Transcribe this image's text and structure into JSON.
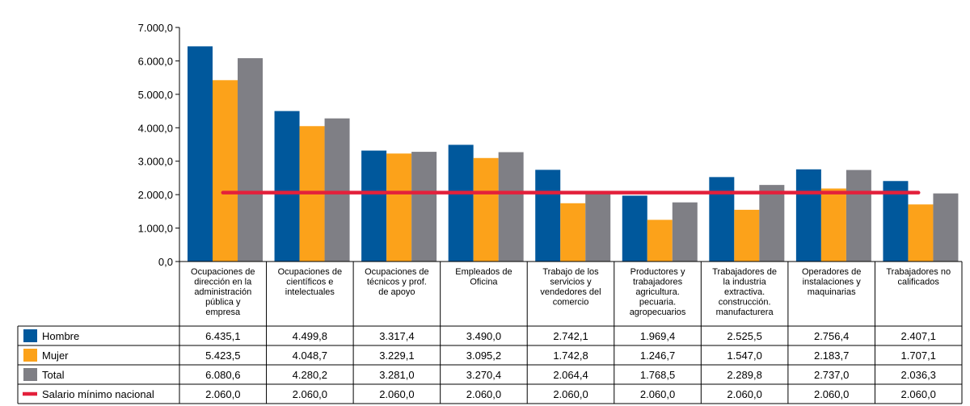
{
  "chart_data": {
    "type": "bar",
    "categories": [
      [
        "Ocupaciones de",
        "dirección en la",
        "administración",
        "pública y",
        "empresa"
      ],
      [
        "Ocupaciones de",
        "científicos e",
        "intelectuales"
      ],
      [
        "Ocupaciones de",
        "técnicos y prof.",
        "de apoyo"
      ],
      [
        "Empleados de",
        "Oficina"
      ],
      [
        "Trabajo de los",
        "servicios y",
        "vendedores del",
        "comercio"
      ],
      [
        "Productores y",
        "trabajadores",
        "agricultura.",
        "pecuaria.",
        "agropecuarios"
      ],
      [
        "Trabajadores de",
        "la industria",
        "extractiva.",
        "construcción.",
        "manufacturera"
      ],
      [
        "Operadores de",
        "instalaciones y",
        "maquinarias"
      ],
      [
        "Trabajadores no",
        "calificados"
      ]
    ],
    "series": [
      {
        "name": "Hombre",
        "color": "#00589c",
        "values": [
          6435.1,
          4499.8,
          3317.4,
          3490.0,
          2742.1,
          1969.4,
          2525.5,
          2756.4,
          2407.1
        ],
        "labels": [
          "6.435,1",
          "4.499,8",
          "3.317,4",
          "3.490,0",
          "2.742,1",
          "1.969,4",
          "2.525,5",
          "2.756,4",
          "2.407,1"
        ]
      },
      {
        "name": "Mujer",
        "color": "#fca21a",
        "values": [
          5423.5,
          4048.7,
          3229.1,
          3095.2,
          1742.8,
          1246.7,
          1547.0,
          2183.7,
          1707.1
        ],
        "labels": [
          "5.423,5",
          "4.048,7",
          "3.229,1",
          "3.095,2",
          "1.742,8",
          "1.246,7",
          "1.547,0",
          "2.183,7",
          "1.707,1"
        ]
      },
      {
        "name": "Total",
        "color": "#7f7f85",
        "values": [
          6080.6,
          4280.2,
          3281.0,
          3270.4,
          2064.4,
          1768.5,
          2289.8,
          2737.0,
          2036.3
        ],
        "labels": [
          "6.080,6",
          "4.280,2",
          "3.281,0",
          "3.270,4",
          "2.064,4",
          "1.768,5",
          "2.289,8",
          "2.737,0",
          "2.036,3"
        ]
      }
    ],
    "line_series": {
      "name": "Salario mínimo nacional",
      "color": "#e3203b",
      "values": [
        2060.0,
        2060.0,
        2060.0,
        2060.0,
        2060.0,
        2060.0,
        2060.0,
        2060.0,
        2060.0
      ],
      "labels": [
        "2.060,0",
        "2.060,0",
        "2.060,0",
        "2.060,0",
        "2.060,0",
        "2.060,0",
        "2.060,0",
        "2.060,0",
        "2.060,0"
      ]
    },
    "ylim": [
      0,
      7000
    ],
    "yticks": [
      0,
      1000,
      2000,
      3000,
      4000,
      5000,
      6000,
      7000
    ],
    "ytick_labels": [
      "0,0",
      "1.000,0",
      "2.000,0",
      "3.000,0",
      "4.000,0",
      "5.000,0",
      "6.000,0",
      "7.000,0"
    ],
    "grid": false,
    "legend": "data-table-left"
  }
}
